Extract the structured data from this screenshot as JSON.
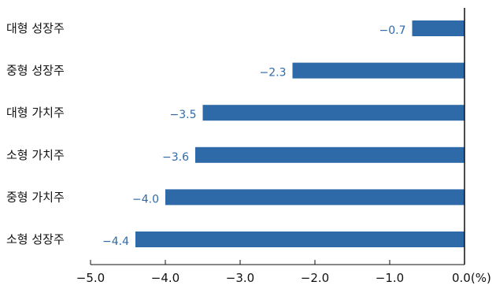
{
  "chart_data": {
    "type": "bar",
    "orientation": "horizontal",
    "categories": [
      "대형 성장주",
      "중형 성장주",
      "대형 가치주",
      "소형 가치주",
      "중형 가치주",
      "소형 성장주"
    ],
    "values": [
      -0.7,
      -2.3,
      -3.5,
      -3.6,
      -4.0,
      -4.4
    ],
    "data_labels": [
      "−0.7",
      "−2.3",
      "−3.5",
      "−3.6",
      "−4.0",
      "−4.4"
    ],
    "xlim": [
      -5.0,
      0.0
    ],
    "x_ticks": [
      -5.0,
      -4.0,
      -3.0,
      -2.0,
      -1.0,
      0.0
    ],
    "x_tick_labels": [
      "−5.0",
      "−4.0",
      "−3.0",
      "−2.0",
      "−1.0",
      "0.0(%)"
    ],
    "bar_color": "#2e6aa8",
    "label_color": "#2e6aa8",
    "grid": false,
    "legend": "none"
  }
}
